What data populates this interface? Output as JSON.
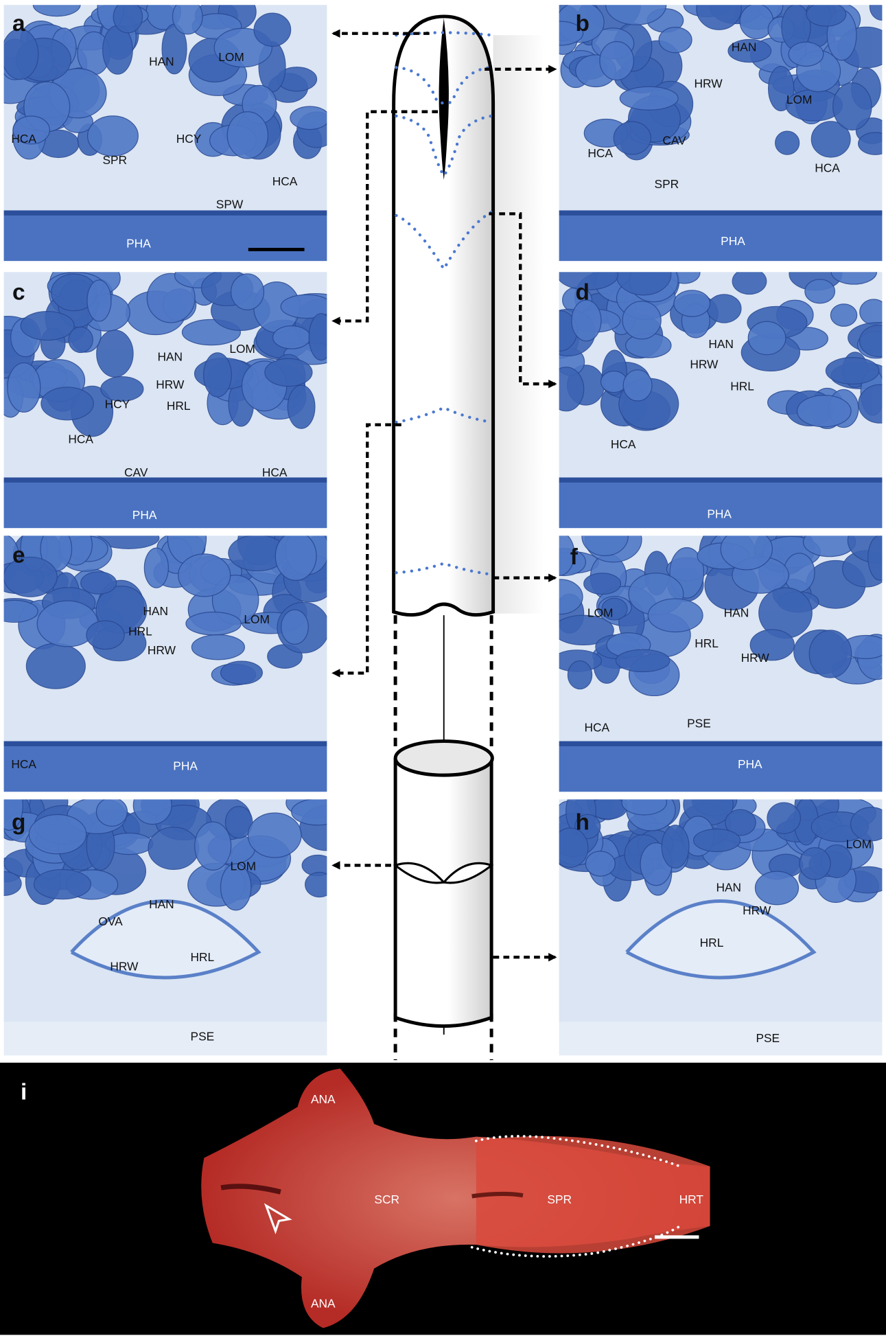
{
  "panels": [
    {
      "letter": "a",
      "labels": [
        "HAN",
        "LOM",
        "HCA",
        "SPR",
        "HCY",
        "HCA",
        "SPW",
        "PHA"
      ]
    },
    {
      "letter": "b",
      "labels": [
        "HAN",
        "HRW",
        "LOM",
        "CAV",
        "HCA",
        "SPR",
        "HCA",
        "PHA"
      ]
    },
    {
      "letter": "c",
      "labels": [
        "HAN",
        "LOM",
        "HRW",
        "HCY",
        "HRL",
        "HCA",
        "CAV",
        "HCA",
        "PHA"
      ]
    },
    {
      "letter": "d",
      "labels": [
        "HAN",
        "HRW",
        "HRL",
        "HCA",
        "PHA"
      ]
    },
    {
      "letter": "e",
      "labels": [
        "HAN",
        "LOM",
        "HRL",
        "HRW",
        "HCA",
        "PHA"
      ]
    },
    {
      "letter": "f",
      "labels": [
        "LOM",
        "HAN",
        "HRL",
        "HRW",
        "PSE",
        "HCA",
        "PHA"
      ]
    },
    {
      "letter": "g",
      "labels": [
        "LOM",
        "HAN",
        "OVA",
        "HRL",
        "HRW",
        "PSE"
      ]
    },
    {
      "letter": "h",
      "labels": [
        "LOM",
        "HAN",
        "HRW",
        "HRL",
        "PSE"
      ]
    },
    {
      "letter": "i",
      "labels": [
        "ANA",
        "SCR",
        "SPR",
        "HRT",
        "ANA"
      ]
    }
  ]
}
